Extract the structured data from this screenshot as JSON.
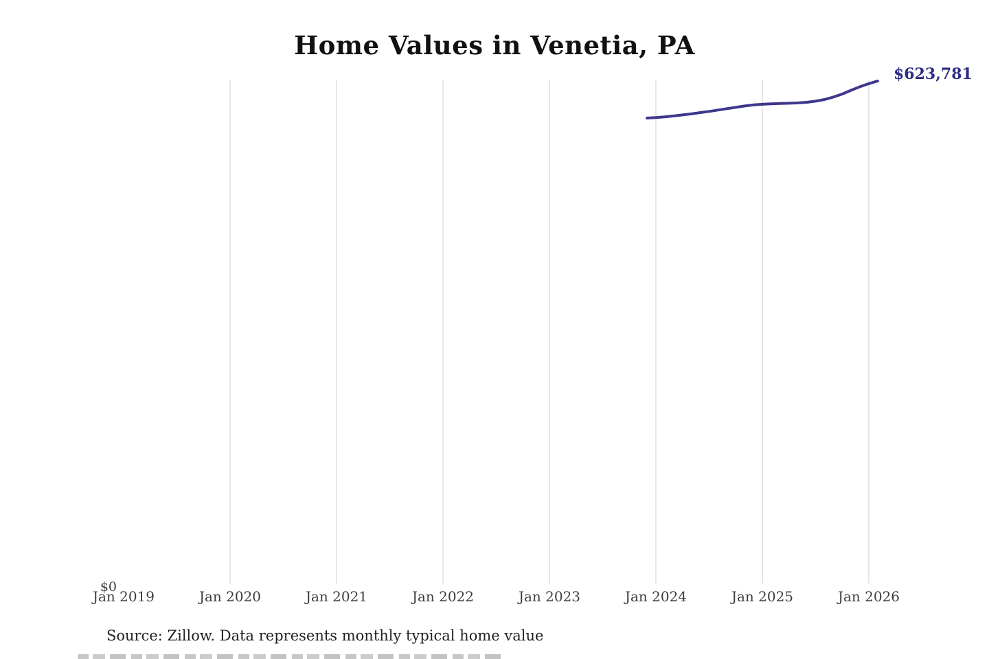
{
  "page": {
    "title": "Home Values in Venetia, PA",
    "source_note": "Source: Zillow. Data represents monthly typical home value"
  },
  "chart_data": {
    "type": "line",
    "title": "Home Values in Venetia, PA",
    "series_name": "Monthly typical home value",
    "end_label": "$623,781",
    "line_color": "#3e378c",
    "end_label_color": "#2f2d86",
    "gridline_color": "#cccccc",
    "x_ticks": [
      {
        "label": "Jan 2019",
        "gridline": false
      },
      {
        "label": "Jan 2020",
        "gridline": true
      },
      {
        "label": "Jan 2021",
        "gridline": true
      },
      {
        "label": "Jan 2022",
        "gridline": true
      },
      {
        "label": "Jan 2023",
        "gridline": true
      },
      {
        "label": "Jan 2024",
        "gridline": true
      },
      {
        "label": "Jan 2025",
        "gridline": true
      },
      {
        "label": "Jan 2026",
        "gridline": true
      }
    ],
    "y_axis": {
      "zero_label": "$0",
      "min": 0,
      "max_annotated_value": 623781
    },
    "points": [
      {
        "date": "2023-12",
        "value": 577800
      },
      {
        "date": "2024-01",
        "value": 578400
      },
      {
        "date": "2024-02",
        "value": 579200
      },
      {
        "date": "2024-03",
        "value": 580400
      },
      {
        "date": "2024-04",
        "value": 581700
      },
      {
        "date": "2024-05",
        "value": 583000
      },
      {
        "date": "2024-06",
        "value": 584600
      },
      {
        "date": "2024-07",
        "value": 586000
      },
      {
        "date": "2024-08",
        "value": 587700
      },
      {
        "date": "2024-09",
        "value": 589400
      },
      {
        "date": "2024-10",
        "value": 591100
      },
      {
        "date": "2024-11",
        "value": 592800
      },
      {
        "date": "2024-12",
        "value": 594100
      },
      {
        "date": "2025-01",
        "value": 594900
      },
      {
        "date": "2025-02",
        "value": 595400
      },
      {
        "date": "2025-03",
        "value": 595800
      },
      {
        "date": "2025-04",
        "value": 596200
      },
      {
        "date": "2025-05",
        "value": 596600
      },
      {
        "date": "2025-06",
        "value": 597400
      },
      {
        "date": "2025-07",
        "value": 598700
      },
      {
        "date": "2025-08",
        "value": 600800
      },
      {
        "date": "2025-09",
        "value": 603800
      },
      {
        "date": "2025-10",
        "value": 607600
      },
      {
        "date": "2025-11",
        "value": 612300
      },
      {
        "date": "2025-12",
        "value": 616700
      },
      {
        "date": "2026-01",
        "value": 620500
      },
      {
        "date": "2026-02",
        "value": 623781
      }
    ]
  }
}
